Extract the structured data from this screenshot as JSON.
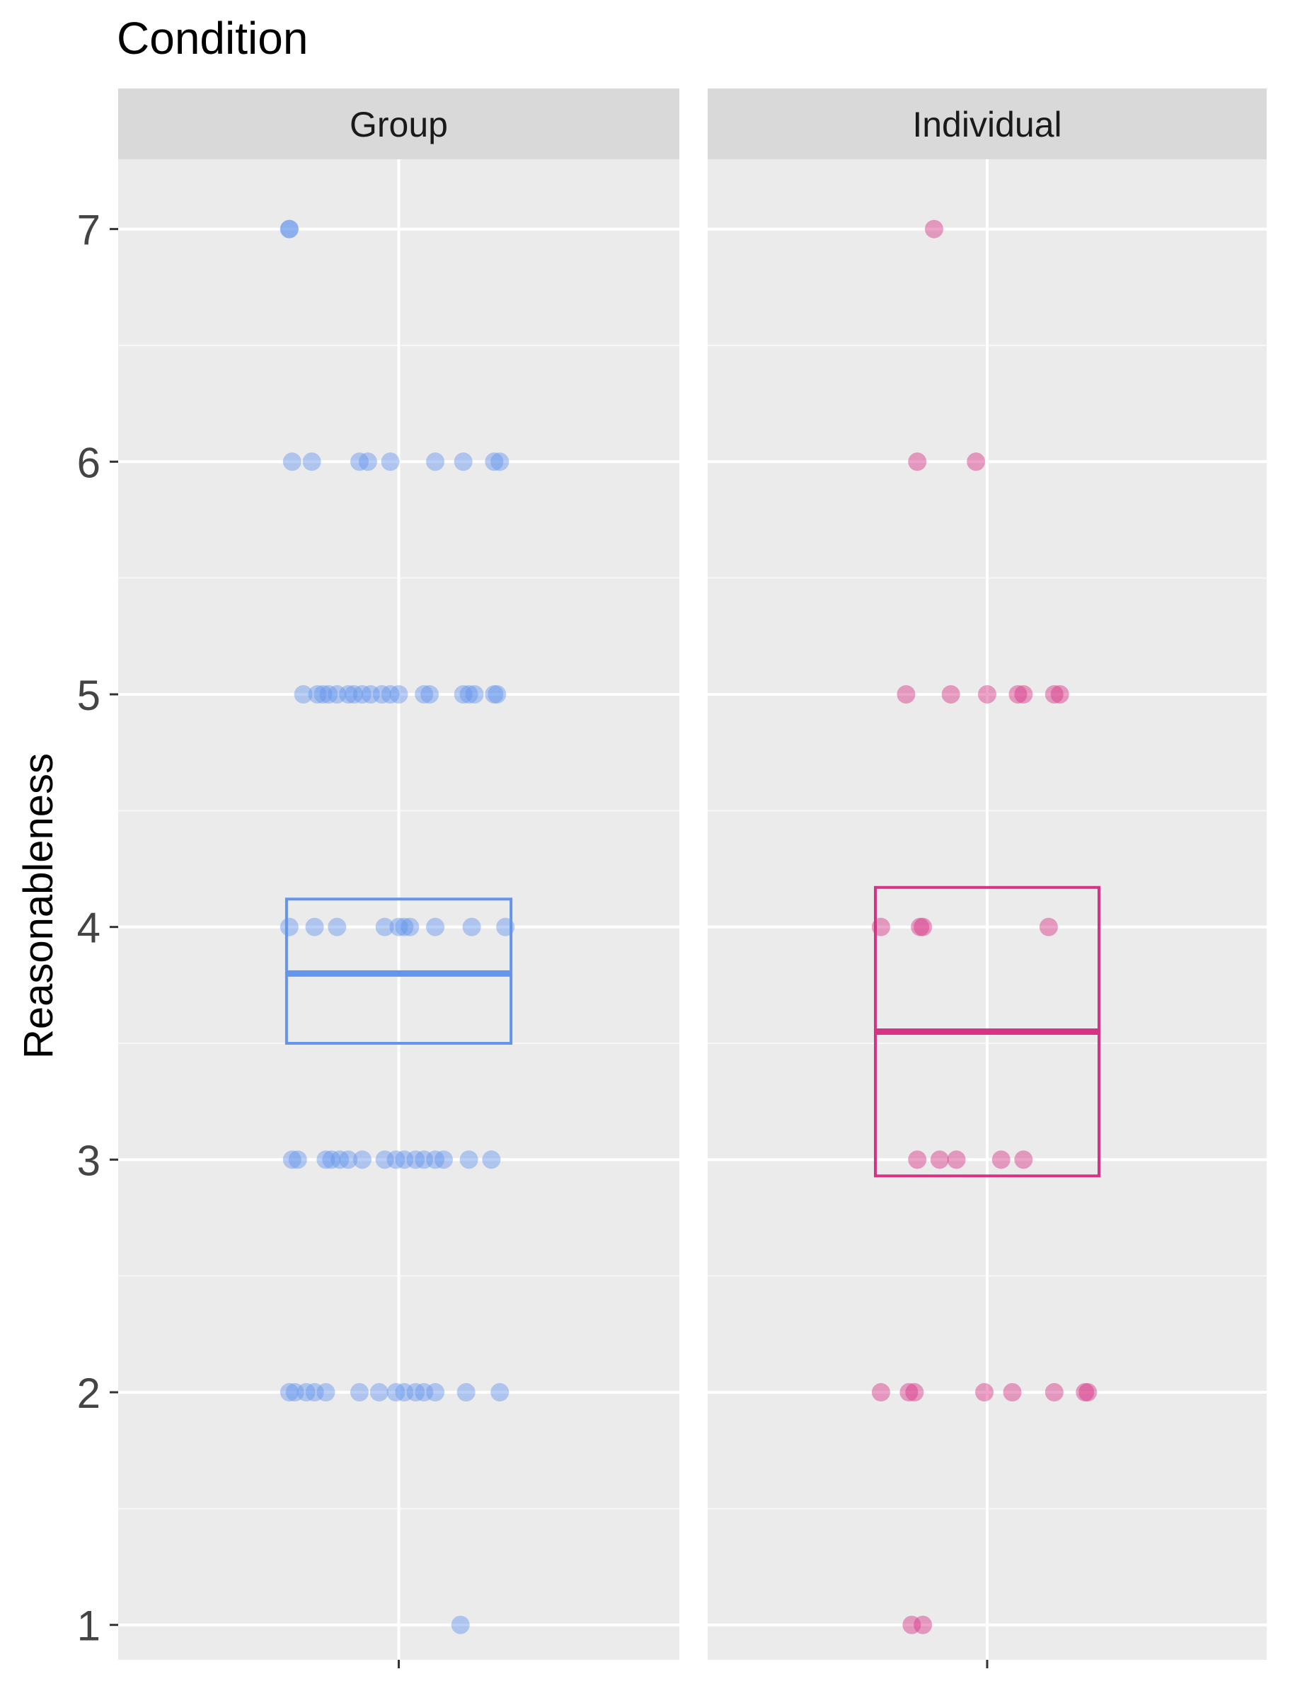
{
  "chart_data": {
    "type": "scatter",
    "title": "Condition",
    "xlabel": "",
    "ylabel": "Reasonableness",
    "ylim": [
      0.85,
      7.3
    ],
    "yticks": [
      "1",
      "2",
      "3",
      "4",
      "5",
      "6",
      "7"
    ],
    "grid": true,
    "facets": [
      {
        "name": "Group",
        "color": "#6495ED",
        "box": {
          "q1": 3.5,
          "median": 3.8,
          "q3": 4.12
        },
        "points": [
          {
            "x": -0.39,
            "y": 7
          },
          {
            "x": -0.39,
            "y": 7
          },
          {
            "x": -0.38,
            "y": 6
          },
          {
            "x": -0.31,
            "y": 6
          },
          {
            "x": -0.14,
            "y": 6
          },
          {
            "x": -0.11,
            "y": 6
          },
          {
            "x": -0.03,
            "y": 6
          },
          {
            "x": 0.13,
            "y": 6
          },
          {
            "x": 0.23,
            "y": 6
          },
          {
            "x": 0.34,
            "y": 6
          },
          {
            "x": 0.36,
            "y": 6
          },
          {
            "x": -0.34,
            "y": 5
          },
          {
            "x": -0.29,
            "y": 5
          },
          {
            "x": -0.27,
            "y": 5
          },
          {
            "x": -0.25,
            "y": 5
          },
          {
            "x": -0.22,
            "y": 5
          },
          {
            "x": -0.18,
            "y": 5
          },
          {
            "x": -0.16,
            "y": 5
          },
          {
            "x": -0.13,
            "y": 5
          },
          {
            "x": -0.1,
            "y": 5
          },
          {
            "x": -0.06,
            "y": 5
          },
          {
            "x": -0.03,
            "y": 5
          },
          {
            "x": 0.0,
            "y": 5
          },
          {
            "x": 0.09,
            "y": 5
          },
          {
            "x": 0.11,
            "y": 5
          },
          {
            "x": 0.23,
            "y": 5
          },
          {
            "x": 0.25,
            "y": 5
          },
          {
            "x": 0.27,
            "y": 5
          },
          {
            "x": 0.34,
            "y": 5
          },
          {
            "x": 0.35,
            "y": 5
          },
          {
            "x": -0.39,
            "y": 4
          },
          {
            "x": -0.3,
            "y": 4
          },
          {
            "x": -0.22,
            "y": 4
          },
          {
            "x": -0.05,
            "y": 4
          },
          {
            "x": 0.0,
            "y": 4
          },
          {
            "x": 0.02,
            "y": 4
          },
          {
            "x": 0.04,
            "y": 4
          },
          {
            "x": 0.13,
            "y": 4
          },
          {
            "x": 0.26,
            "y": 4
          },
          {
            "x": 0.38,
            "y": 4
          },
          {
            "x": -0.38,
            "y": 3
          },
          {
            "x": -0.36,
            "y": 3
          },
          {
            "x": -0.26,
            "y": 3
          },
          {
            "x": -0.24,
            "y": 3
          },
          {
            "x": -0.21,
            "y": 3
          },
          {
            "x": -0.18,
            "y": 3
          },
          {
            "x": -0.13,
            "y": 3
          },
          {
            "x": -0.05,
            "y": 3
          },
          {
            "x": -0.01,
            "y": 3
          },
          {
            "x": 0.02,
            "y": 3
          },
          {
            "x": 0.06,
            "y": 3
          },
          {
            "x": 0.09,
            "y": 3
          },
          {
            "x": 0.13,
            "y": 3
          },
          {
            "x": 0.16,
            "y": 3
          },
          {
            "x": 0.25,
            "y": 3
          },
          {
            "x": 0.33,
            "y": 3
          },
          {
            "x": -0.39,
            "y": 2
          },
          {
            "x": -0.37,
            "y": 2
          },
          {
            "x": -0.33,
            "y": 2
          },
          {
            "x": -0.3,
            "y": 2
          },
          {
            "x": -0.26,
            "y": 2
          },
          {
            "x": -0.14,
            "y": 2
          },
          {
            "x": -0.07,
            "y": 2
          },
          {
            "x": -0.01,
            "y": 2
          },
          {
            "x": 0.02,
            "y": 2
          },
          {
            "x": 0.06,
            "y": 2
          },
          {
            "x": 0.09,
            "y": 2
          },
          {
            "x": 0.13,
            "y": 2
          },
          {
            "x": 0.24,
            "y": 2
          },
          {
            "x": 0.36,
            "y": 2
          },
          {
            "x": 0.22,
            "y": 1
          }
        ]
      },
      {
        "name": "Individual",
        "color": "#D63384",
        "box": {
          "q1": 2.93,
          "median": 3.55,
          "q3": 4.17
        },
        "points": [
          {
            "x": -0.19,
            "y": 7
          },
          {
            "x": -0.25,
            "y": 6
          },
          {
            "x": -0.04,
            "y": 6
          },
          {
            "x": -0.29,
            "y": 5
          },
          {
            "x": -0.13,
            "y": 5
          },
          {
            "x": 0.0,
            "y": 5
          },
          {
            "x": 0.11,
            "y": 5
          },
          {
            "x": 0.13,
            "y": 5
          },
          {
            "x": 0.24,
            "y": 5
          },
          {
            "x": 0.26,
            "y": 5
          },
          {
            "x": -0.38,
            "y": 4
          },
          {
            "x": -0.24,
            "y": 4
          },
          {
            "x": -0.23,
            "y": 4
          },
          {
            "x": 0.22,
            "y": 4
          },
          {
            "x": -0.25,
            "y": 3
          },
          {
            "x": -0.17,
            "y": 3
          },
          {
            "x": -0.11,
            "y": 3
          },
          {
            "x": 0.05,
            "y": 3
          },
          {
            "x": 0.13,
            "y": 3
          },
          {
            "x": -0.38,
            "y": 2
          },
          {
            "x": -0.28,
            "y": 2
          },
          {
            "x": -0.26,
            "y": 2
          },
          {
            "x": -0.01,
            "y": 2
          },
          {
            "x": 0.09,
            "y": 2
          },
          {
            "x": 0.24,
            "y": 2
          },
          {
            "x": 0.35,
            "y": 2
          },
          {
            "x": 0.36,
            "y": 2
          },
          {
            "x": -0.27,
            "y": 1
          },
          {
            "x": -0.23,
            "y": 1
          }
        ]
      }
    ]
  }
}
